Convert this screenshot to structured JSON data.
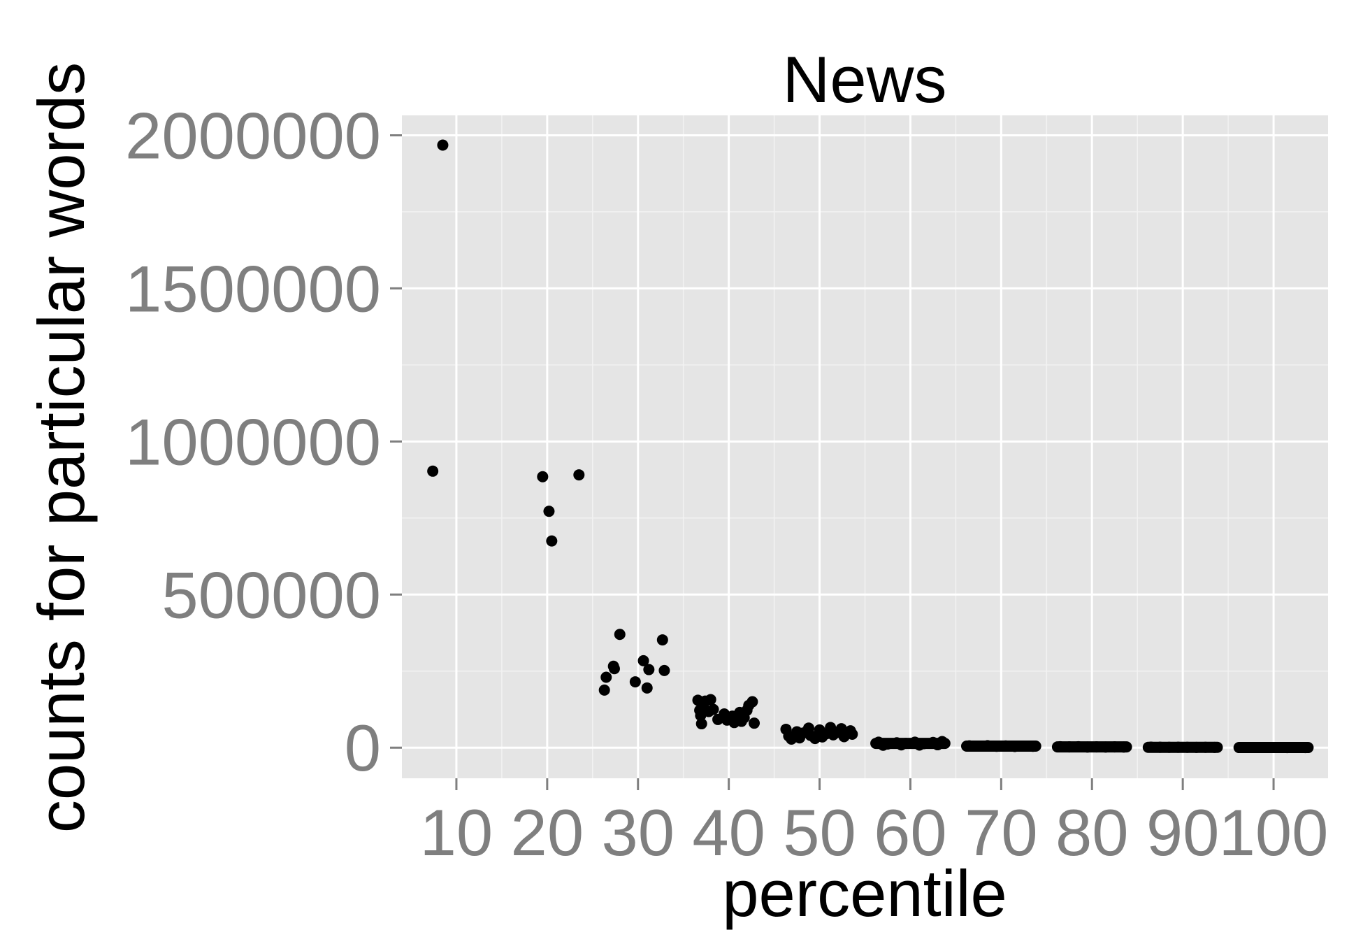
{
  "chart_data": {
    "type": "scatter",
    "title": "News",
    "xlabel": "percentile",
    "ylabel": "counts for particular words",
    "xlim": [
      4,
      106
    ],
    "ylim": [
      -100000,
      2065000
    ],
    "x_ticks": [
      10,
      20,
      30,
      40,
      50,
      60,
      70,
      80,
      90,
      100
    ],
    "x_tick_labels": [
      "10",
      "20",
      "30",
      "40",
      "50",
      "60",
      "70",
      "80",
      "90",
      "100"
    ],
    "y_ticks": [
      0,
      500000,
      1000000,
      1500000,
      2000000
    ],
    "y_tick_labels": [
      "0",
      "500000",
      "1000000",
      "1500000",
      "2000000"
    ],
    "grid": true,
    "colors": {
      "panel": "#e5e5e5",
      "grid": "#ffffff",
      "point": "#000000",
      "tick": "#7f7f7f"
    },
    "points": [
      {
        "x": 8.5,
        "y": 1968000
      },
      {
        "x": 7.4,
        "y": 903000
      },
      {
        "x": 19.5,
        "y": 885000
      },
      {
        "x": 23.5,
        "y": 891000
      },
      {
        "x": 20.2,
        "y": 772000
      },
      {
        "x": 20.5,
        "y": 675000
      },
      {
        "x": 28.0,
        "y": 370000
      },
      {
        "x": 32.7,
        "y": 352000
      },
      {
        "x": 30.6,
        "y": 284000
      },
      {
        "x": 27.3,
        "y": 266000
      },
      {
        "x": 27.4,
        "y": 258000
      },
      {
        "x": 31.2,
        "y": 255000
      },
      {
        "x": 32.9,
        "y": 252000
      },
      {
        "x": 26.5,
        "y": 230000
      },
      {
        "x": 29.7,
        "y": 215000
      },
      {
        "x": 31.0,
        "y": 195000
      },
      {
        "x": 26.3,
        "y": 188000
      },
      {
        "x": 36.6,
        "y": 155000
      },
      {
        "x": 37.4,
        "y": 152000
      },
      {
        "x": 38.0,
        "y": 157000
      },
      {
        "x": 37.2,
        "y": 138000
      },
      {
        "x": 36.8,
        "y": 122000
      },
      {
        "x": 37.8,
        "y": 118000
      },
      {
        "x": 38.3,
        "y": 125000
      },
      {
        "x": 39.5,
        "y": 110000
      },
      {
        "x": 40.4,
        "y": 103000
      },
      {
        "x": 41.2,
        "y": 115000
      },
      {
        "x": 42.0,
        "y": 122000
      },
      {
        "x": 42.6,
        "y": 150000
      },
      {
        "x": 42.2,
        "y": 138000
      },
      {
        "x": 41.7,
        "y": 98000
      },
      {
        "x": 38.8,
        "y": 92000
      },
      {
        "x": 39.8,
        "y": 90000
      },
      {
        "x": 40.6,
        "y": 82000
      },
      {
        "x": 41.4,
        "y": 86000
      },
      {
        "x": 42.8,
        "y": 80000
      },
      {
        "x": 37.0,
        "y": 78000
      },
      {
        "x": 40.9,
        "y": 95000
      },
      {
        "x": 36.9,
        "y": 105000
      },
      {
        "x": 46.3,
        "y": 60000
      },
      {
        "x": 47.5,
        "y": 52000
      },
      {
        "x": 48.8,
        "y": 64000
      },
      {
        "x": 50.0,
        "y": 58000
      },
      {
        "x": 51.2,
        "y": 66000
      },
      {
        "x": 52.4,
        "y": 62000
      },
      {
        "x": 53.4,
        "y": 55000
      },
      {
        "x": 46.6,
        "y": 38000
      },
      {
        "x": 47.8,
        "y": 32000
      },
      {
        "x": 49.0,
        "y": 40000
      },
      {
        "x": 50.3,
        "y": 35000
      },
      {
        "x": 51.5,
        "y": 42000
      },
      {
        "x": 52.7,
        "y": 36000
      },
      {
        "x": 53.6,
        "y": 44000
      },
      {
        "x": 48.2,
        "y": 48000
      },
      {
        "x": 50.8,
        "y": 46000
      },
      {
        "x": 52.0,
        "y": 50000
      },
      {
        "x": 46.9,
        "y": 28000
      },
      {
        "x": 49.5,
        "y": 30000
      },
      {
        "x": 56.5,
        "y": 18000
      },
      {
        "x": 57.5,
        "y": 12000
      },
      {
        "x": 58.5,
        "y": 16000
      },
      {
        "x": 59.5,
        "y": 14000
      },
      {
        "x": 60.5,
        "y": 18000
      },
      {
        "x": 61.5,
        "y": 13000
      },
      {
        "x": 62.5,
        "y": 17000
      },
      {
        "x": 63.5,
        "y": 20000
      },
      {
        "x": 57.0,
        "y": 8000
      },
      {
        "x": 59.0,
        "y": 9000
      },
      {
        "x": 61.0,
        "y": 8500
      },
      {
        "x": 63.0,
        "y": 9500
      },
      {
        "x": 66.5,
        "y": 6000
      },
      {
        "x": 67.5,
        "y": 5000
      },
      {
        "x": 68.5,
        "y": 6500
      },
      {
        "x": 69.5,
        "y": 4500
      },
      {
        "x": 70.5,
        "y": 5500
      },
      {
        "x": 71.5,
        "y": 4000
      },
      {
        "x": 72.5,
        "y": 5000
      },
      {
        "x": 73.5,
        "y": 4500
      },
      {
        "x": 76.5,
        "y": 3000
      },
      {
        "x": 77.5,
        "y": 2500
      },
      {
        "x": 78.5,
        "y": 3000
      },
      {
        "x": 79.5,
        "y": 2000
      },
      {
        "x": 80.5,
        "y": 2500
      },
      {
        "x": 81.5,
        "y": 2000
      },
      {
        "x": 82.5,
        "y": 2500
      },
      {
        "x": 83.5,
        "y": 2000
      },
      {
        "x": 86.5,
        "y": 1500
      },
      {
        "x": 87.5,
        "y": 1200
      },
      {
        "x": 88.5,
        "y": 1000
      },
      {
        "x": 89.5,
        "y": 1200
      },
      {
        "x": 90.5,
        "y": 1000
      },
      {
        "x": 91.5,
        "y": 900
      },
      {
        "x": 92.5,
        "y": 1000
      },
      {
        "x": 93.5,
        "y": 800
      },
      {
        "x": 96.5,
        "y": 600
      },
      {
        "x": 97.5,
        "y": 500
      },
      {
        "x": 98.5,
        "y": 400
      },
      {
        "x": 99.5,
        "y": 500
      },
      {
        "x": 100.5,
        "y": 400
      },
      {
        "x": 101.5,
        "y": 300
      },
      {
        "x": 102.5,
        "y": 400
      },
      {
        "x": 103.5,
        "y": 300
      }
    ],
    "bands": [
      {
        "x_from": 56.2,
        "x_to": 63.8,
        "y": 14000
      },
      {
        "x_from": 66.2,
        "y_note": "",
        "x_to": 73.8,
        "y": 5000
      },
      {
        "x_from": 76.2,
        "x_to": 83.8,
        "y": 2500
      },
      {
        "x_from": 86.2,
        "x_to": 93.8,
        "y": 1000
      },
      {
        "x_from": 96.2,
        "x_to": 103.8,
        "y": 400
      }
    ]
  }
}
